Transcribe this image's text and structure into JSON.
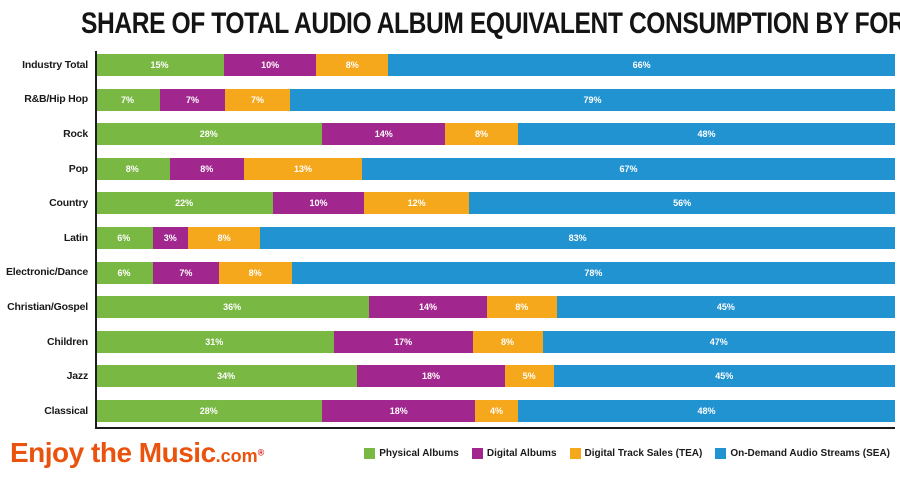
{
  "title": "SHARE OF TOTAL AUDIO ALBUM EQUIVALENT CONSUMPTION BY FORMAT",
  "watermark": {
    "main": "Enjoy the Music",
    "suffix": ".com",
    "reg": "®",
    "main_color": "#e9530e",
    "reg_color": "#d61a1a"
  },
  "colors": {
    "axis": "#1c1c1c",
    "title_text": "#141414",
    "value_label_text": "#ffffff",
    "background": "#ffffff"
  },
  "chart_data": {
    "type": "bar",
    "orientation": "horizontal",
    "stacked": true,
    "unit": "%",
    "title": "SHARE OF TOTAL AUDIO ALBUM EQUIVALENT CONSUMPTION BY FORMAT",
    "xlabel": "",
    "ylabel": "",
    "xlim": [
      0,
      100
    ],
    "grid": false,
    "legend_position": "bottom-right",
    "value_labels": "inside-center-white",
    "categories": [
      "Industry Total",
      "R&B/Hip Hop",
      "Rock",
      "Pop",
      "Country",
      "Latin",
      "Electronic/Dance",
      "Christian/Gospel",
      "Children",
      "Jazz",
      "Classical"
    ],
    "series": [
      {
        "name": "Physical Albums",
        "color": "#79b943",
        "values": [
          15,
          7,
          28,
          8,
          22,
          6,
          6,
          36,
          31,
          34,
          28
        ]
      },
      {
        "name": "Digital Albums",
        "color": "#a1278e",
        "values": [
          10,
          7,
          14,
          8,
          10,
          3,
          7,
          14,
          17,
          18,
          18
        ]
      },
      {
        "name": "Digital Track Sales (TEA)",
        "color": "#f5a81c",
        "values": [
          8,
          7,
          8,
          13,
          12,
          8,
          8,
          8,
          8,
          5,
          4
        ]
      },
      {
        "name": "On-Demand Audio Streams (SEA)",
        "color": "#2193d1",
        "values": [
          66,
          79,
          48,
          67,
          56,
          83,
          78,
          45,
          47,
          45,
          48
        ]
      }
    ]
  }
}
